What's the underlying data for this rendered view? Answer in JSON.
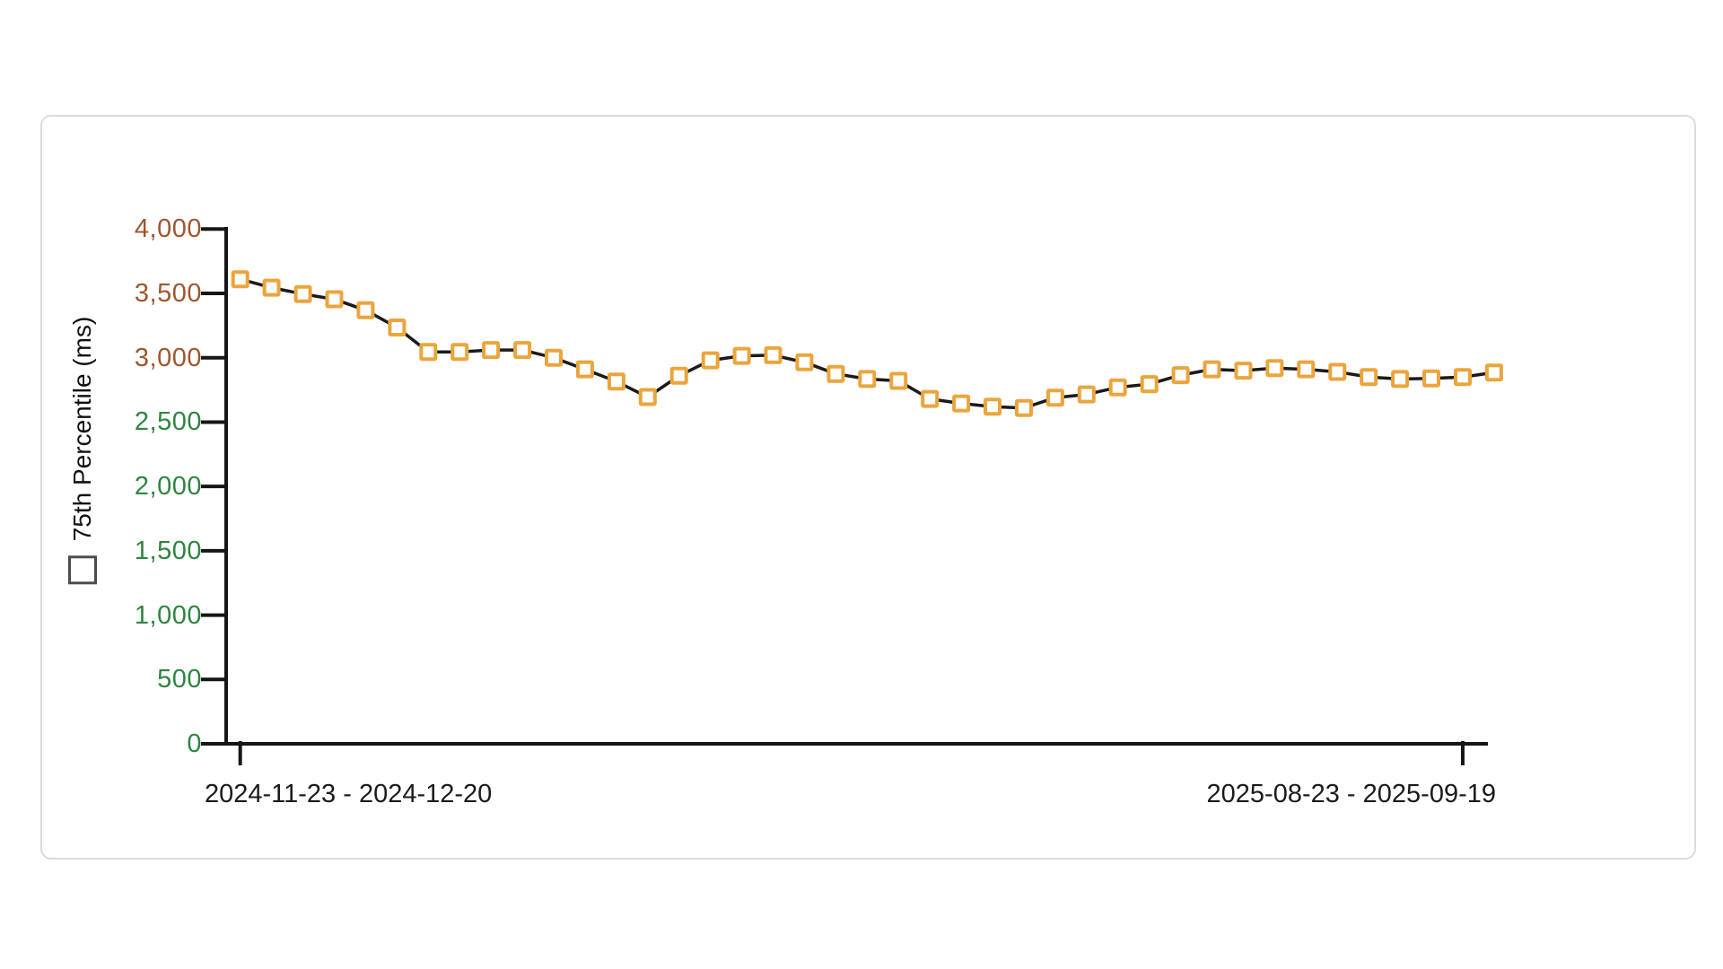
{
  "card": {
    "name": "metric-trend-card"
  },
  "chart_data": {
    "type": "line",
    "title": "",
    "xlabel": "",
    "ylabel": "75th Percentile (ms)",
    "ylim": [
      0,
      4000
    ],
    "grid": false,
    "legend_position": "y-axis-label",
    "y_ticks": [
      {
        "label": "0",
        "value": 0,
        "color": "#2e8540"
      },
      {
        "label": "500",
        "value": 500,
        "color": "#2e8540"
      },
      {
        "label": "1,000",
        "value": 1000,
        "color": "#2e8540"
      },
      {
        "label": "1,500",
        "value": 1500,
        "color": "#2e8540"
      },
      {
        "label": "2,000",
        "value": 2000,
        "color": "#2e8540"
      },
      {
        "label": "2,500",
        "value": 2500,
        "color": "#2e8540"
      },
      {
        "label": "3,000",
        "value": 3000,
        "color": "#a0552d"
      },
      {
        "label": "3,500",
        "value": 3500,
        "color": "#a0552d"
      },
      {
        "label": "4,000",
        "value": 4000,
        "color": "#a0552d"
      }
    ],
    "x_tick_labels": [
      {
        "label": "2024-11-23 - 2024-12-20",
        "point_index": 0
      },
      {
        "label": "2025-08-23 - 2025-09-19",
        "point_index": 39
      }
    ],
    "series": [
      {
        "name": "75th Percentile (ms)",
        "marker": "open-square",
        "marker_color": "#ebA53c",
        "marker_fill": "#ffffff",
        "line_color": "#1a1a1a",
        "values": [
          3610,
          3545,
          3495,
          3455,
          3370,
          3235,
          3045,
          3045,
          3060,
          3060,
          3000,
          2910,
          2815,
          2695,
          2860,
          2980,
          3015,
          3020,
          2965,
          2875,
          2835,
          2820,
          2680,
          2645,
          2620,
          2610,
          2690,
          2715,
          2770,
          2795,
          2865,
          2910,
          2900,
          2920,
          2910,
          2890,
          2850,
          2835,
          2840,
          2850,
          2885
        ]
      }
    ],
    "axis_color": "#161616"
  }
}
